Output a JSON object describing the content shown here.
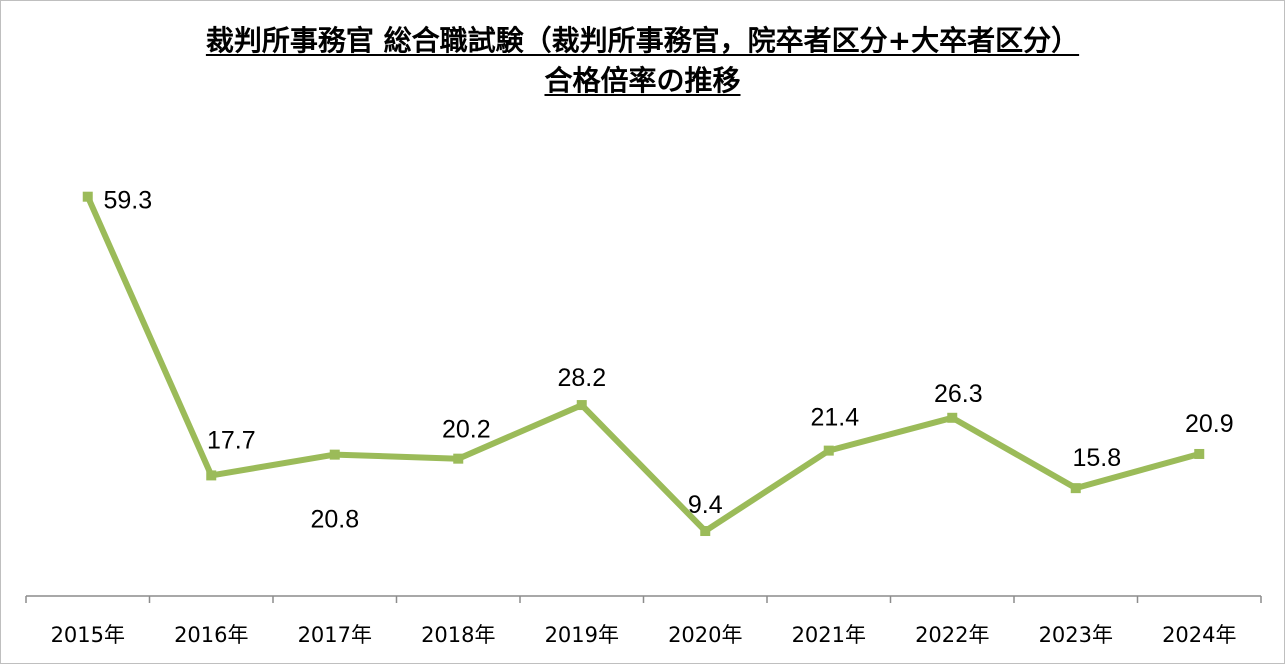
{
  "chart_data": {
    "type": "line",
    "title": "裁判所事務官 総合職試験（裁判所事務官，院卒者区分+大卒者区分）",
    "subtitle": "合格倍率の推移",
    "categories": [
      "2015年",
      "2016年",
      "2017年",
      "2018年",
      "2019年",
      "2020年",
      "2021年",
      "2022年",
      "2023年",
      "2024年"
    ],
    "series": [
      {
        "name": "合格倍率",
        "values": [
          59.3,
          17.7,
          20.8,
          20.2,
          28.2,
          9.4,
          21.4,
          26.3,
          15.8,
          20.9
        ],
        "labels": [
          "59.3",
          "17.7",
          "20.8",
          "20.2",
          "28.2",
          "9.4",
          "21.4",
          "26.3",
          "15.8",
          "20.9"
        ]
      }
    ],
    "xlabel": "",
    "ylabel": "",
    "ylim": [
      0,
      65
    ],
    "grid": false,
    "legend": "none",
    "colors": {
      "line": "#9BBB59",
      "axis": "#8c8c8c"
    }
  }
}
